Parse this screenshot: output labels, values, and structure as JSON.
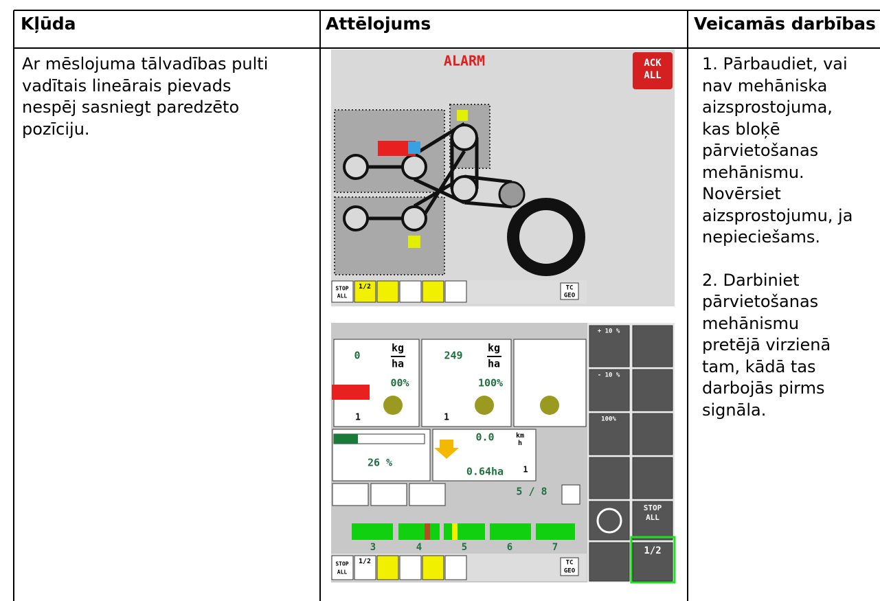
{
  "table": {
    "headers": [
      "Kļūda",
      "Attēlojums",
      "Veicamās darbības"
    ],
    "error_lines": [
      "Ar mēslojuma tālvadības pulti",
      "vadītais lineārais pievads",
      "nespēj sasniegt paredzēto",
      "pozīciju."
    ],
    "actions": [
      [
        "1. Pārbaudiet, vai",
        "nav mehāniska",
        "aizsprostojuma,",
        "kas bloķē",
        "pārvietošanas",
        "mehānismu.",
        "Novērsiet",
        "aizsprostojumu, ja",
        "nepieciešams."
      ],
      [
        "2. Darbiniet",
        "pārvietošanas",
        "mehānismu",
        "pretējā virzienā",
        "tam, kādā tas",
        "darbojās pirms",
        "signāla."
      ]
    ]
  },
  "screen1": {
    "title": "ALARM",
    "ack": [
      "ACK",
      "ALL"
    ],
    "stop": [
      "STOP",
      "ALL"
    ],
    "half": "1/2",
    "tc": [
      "TC",
      "GEO"
    ]
  },
  "screen2": {
    "adjust": [
      "+ 10 %",
      "- 10 %",
      "100%"
    ],
    "panel1": {
      "rate": "0",
      "unit_top": "kg",
      "unit_bottom": "ha",
      "percent": "00%",
      "bin": "1"
    },
    "panel2": {
      "rate": "249",
      "unit_top": "kg",
      "unit_bottom": "ha",
      "percent": "100%",
      "bin": "1"
    },
    "level": "26 %",
    "speed": "0.0",
    "speed_top": "km",
    "speed_bottom": "h",
    "area": "0.64ha",
    "area_index": "1",
    "sections": "5 / 8",
    "section_numbers": [
      "3",
      "4",
      "5",
      "6",
      "7"
    ],
    "stop": [
      "STOP",
      "ALL"
    ],
    "half": "1/2",
    "tc": [
      "TC",
      "GEO"
    ],
    "side_stop": [
      "STOP",
      "ALL"
    ],
    "side_half": "1/2"
  }
}
